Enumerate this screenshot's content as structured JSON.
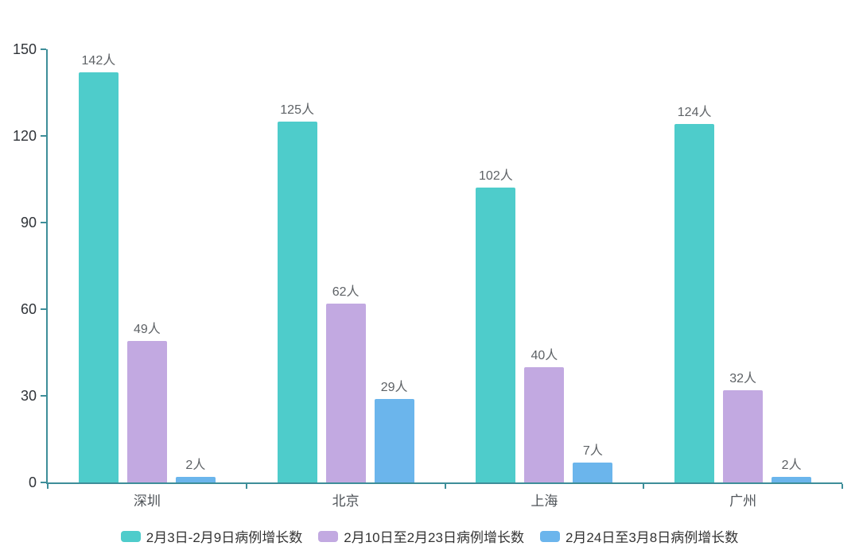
{
  "chart_data": {
    "type": "bar",
    "title": "",
    "categories": [
      "深圳",
      "北京",
      "上海",
      "广州"
    ],
    "series": [
      {
        "name": "2月3日-2月9日病例增长数",
        "color": "#4ECCCB",
        "values": [
          142,
          125,
          102,
          124
        ]
      },
      {
        "name": "2月10日至2月23日病例增长数",
        "color": "#C2A9E1",
        "values": [
          49,
          62,
          40,
          32
        ]
      },
      {
        "name": "2月24日至3月8日病例增长数",
        "color": "#6BB5EC",
        "values": [
          2,
          29,
          7,
          2
        ]
      }
    ],
    "value_suffix": "人",
    "yticks": [
      0,
      30,
      60,
      90,
      120,
      150
    ],
    "ylim": [
      0,
      150
    ],
    "xlabel": "",
    "ylabel": "",
    "grid": false,
    "legend_position": "bottom",
    "colors": {
      "axis": "#3E8E99",
      "value_label": "#5E6266",
      "axis_tick_label": "#2F3338",
      "category_label": "#4E5358",
      "legend_text": "#333333",
      "background": "#FFFFFF"
    }
  }
}
